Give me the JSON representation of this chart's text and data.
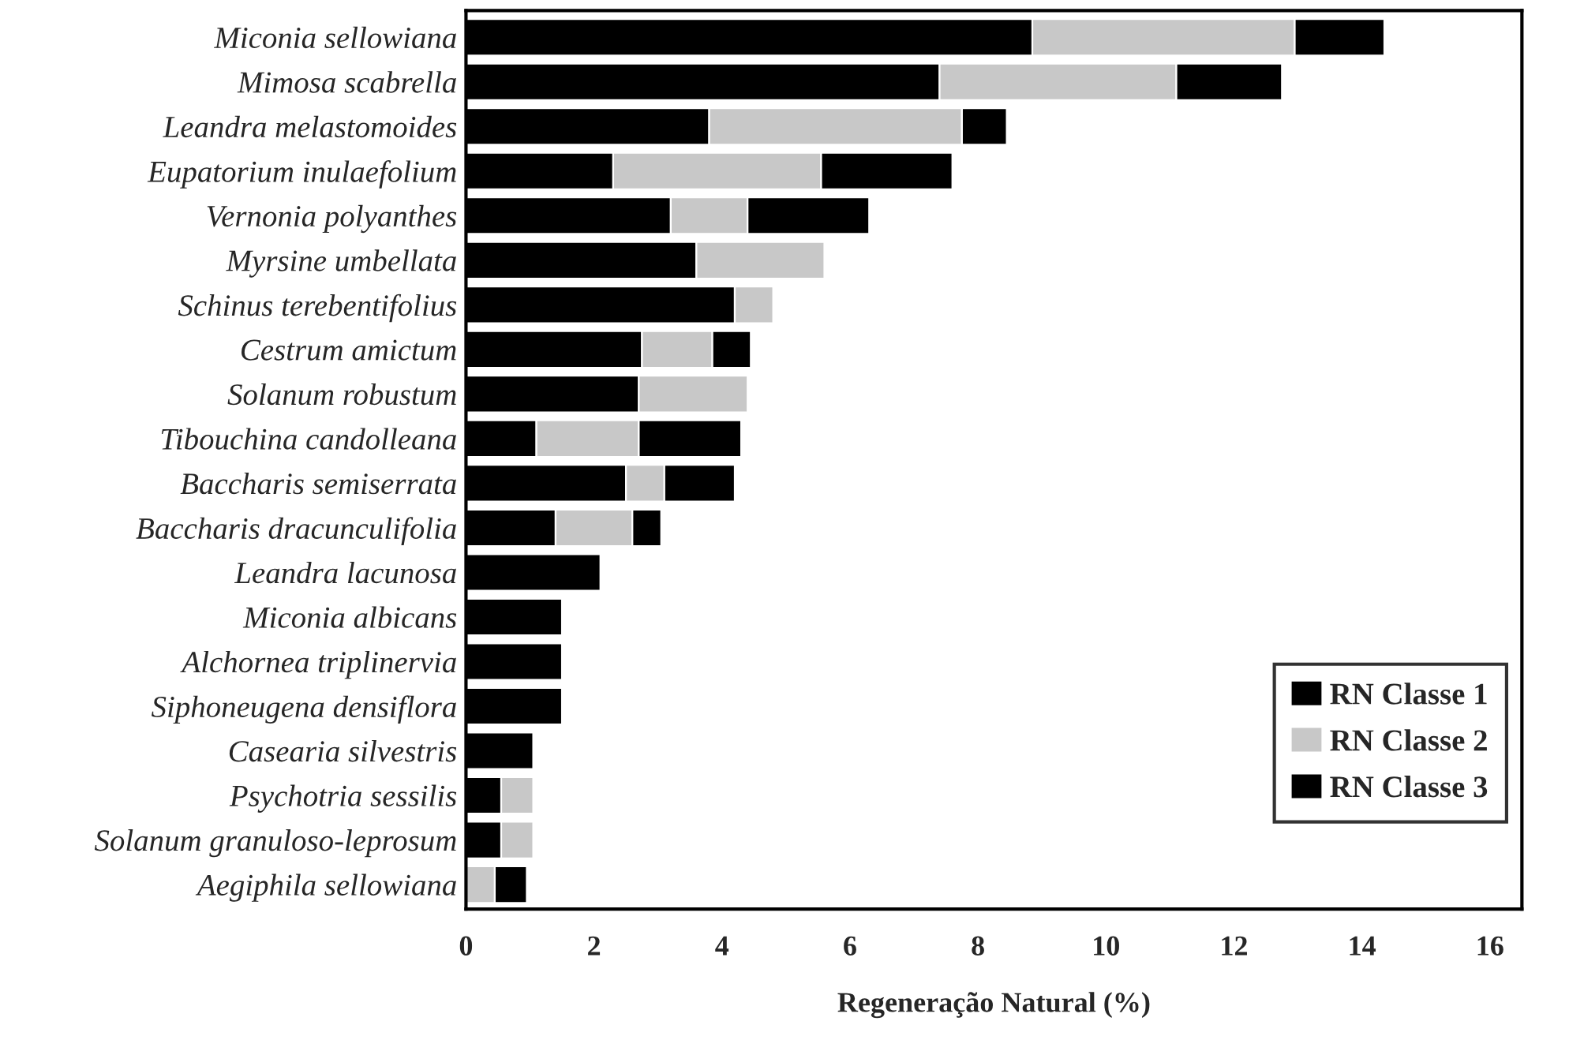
{
  "chart_data": {
    "type": "bar",
    "orientation": "horizontal",
    "stacked": true,
    "xlabel": "Regeneração Natural (%)",
    "categories": [
      "Miconia sellowiana",
      "Mimosa scabrella",
      "Leandra melastomoides",
      "Eupatorium inulaefolium",
      "Vernonia polyanthes",
      "Myrsine umbellata",
      "Schinus terebentifolius",
      "Cestrum amictum",
      "Solanum robustum",
      "Tibouchina candolleana",
      "Baccharis semiserrata",
      "Baccharis dracunculifolia",
      "Leandra lacunosa",
      "Miconia albicans",
      "Alchornea triplinervia",
      "Siphoneugena densiflora",
      "Casearia silvestris",
      "Psychotria sessilis",
      "Solanum granuloso-leprosum",
      "Aegiphila sellowiana"
    ],
    "series": [
      {
        "name": "RN Classe 1",
        "color": "#000000",
        "values": [
          8.85,
          7.4,
          3.8,
          2.3,
          3.2,
          3.6,
          4.2,
          2.75,
          2.7,
          1.1,
          2.5,
          1.4,
          2.1,
          1.5,
          1.5,
          1.5,
          1.05,
          0.55,
          0.55,
          null
        ]
      },
      {
        "name": "RN Classe 2",
        "color": "#c8c8c8",
        "values": [
          4.1,
          3.7,
          3.95,
          3.25,
          1.2,
          2.0,
          0.6,
          1.1,
          1.7,
          1.6,
          0.6,
          1.2,
          null,
          null,
          null,
          null,
          null,
          0.5,
          0.5,
          0.45
        ]
      },
      {
        "name": "RN Classe 3",
        "color": "#000000",
        "values": [
          1.4,
          1.65,
          0.7,
          2.05,
          1.9,
          null,
          null,
          0.6,
          null,
          1.6,
          1.1,
          0.45,
          null,
          null,
          null,
          null,
          null,
          null,
          null,
          0.5
        ]
      }
    ],
    "xlim": [
      0,
      16.5
    ],
    "xticks": [
      0,
      2,
      4,
      6,
      8,
      10,
      12,
      14,
      16
    ],
    "grid": false,
    "legend": "bottom right"
  }
}
